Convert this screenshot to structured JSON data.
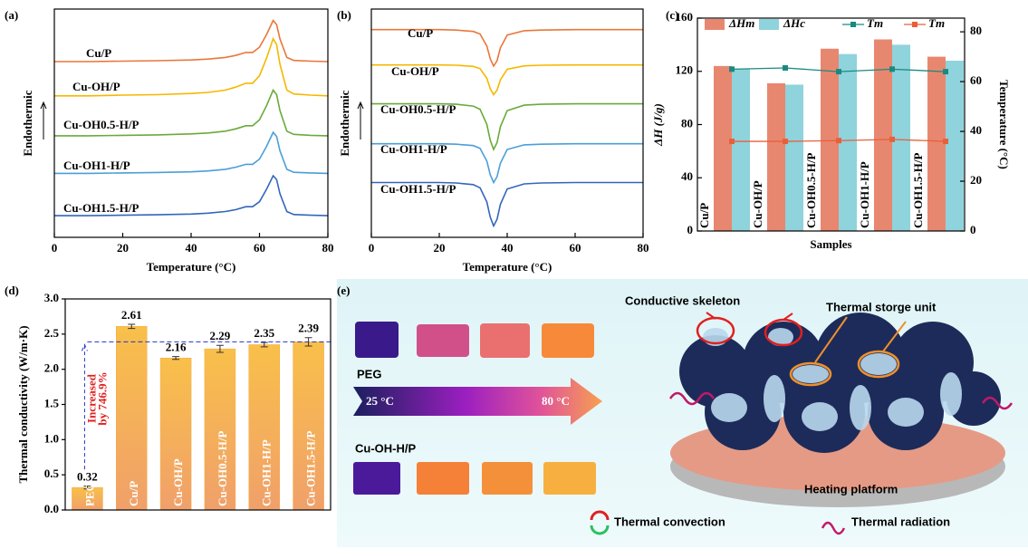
{
  "chart_data": [
    {
      "panel": "(a)",
      "type": "line",
      "x": [
        0,
        10,
        20,
        30,
        40,
        45,
        50,
        53,
        56,
        58,
        60,
        62,
        64,
        65,
        66,
        68,
        70,
        75,
        80
      ],
      "xlim": [
        0,
        80
      ],
      "xticks": [
        0,
        20,
        40,
        60,
        80
      ],
      "ylim": [
        0,
        10
      ],
      "xlabel": "Temperature (°C)",
      "ylabel": "Endothermic",
      "series": [
        {
          "name": "Cu/P",
          "color": "#e8773a",
          "values": [
            7.7,
            7.7,
            7.72,
            7.74,
            7.77,
            7.81,
            7.88,
            7.97,
            8.1,
            8.1,
            8.33,
            8.87,
            9.5,
            9.32,
            8.69,
            7.88,
            7.75,
            7.72,
            7.7
          ]
        },
        {
          "name": "Cu-OH/P",
          "color": "#f5b800",
          "values": [
            6.2,
            6.2,
            6.23,
            6.25,
            6.3,
            6.35,
            6.45,
            6.58,
            6.75,
            6.75,
            7.08,
            7.83,
            8.7,
            8.45,
            7.58,
            6.45,
            6.28,
            6.23,
            6.2
          ]
        },
        {
          "name": "Cu-OH0.5-H/P",
          "color": "#6aaa3a",
          "values": [
            4.45,
            4.45,
            4.47,
            4.49,
            4.53,
            4.57,
            4.65,
            4.75,
            4.89,
            4.89,
            5.15,
            5.75,
            6.45,
            6.25,
            5.55,
            4.65,
            4.51,
            4.47,
            4.45
          ]
        },
        {
          "name": "Cu-OH1-H/P",
          "color": "#4a9fd8",
          "values": [
            2.8,
            2.8,
            2.82,
            2.84,
            2.87,
            2.91,
            2.98,
            3.07,
            3.2,
            3.2,
            3.43,
            3.97,
            4.6,
            4.42,
            3.79,
            2.98,
            2.85,
            2.82,
            2.8
          ]
        },
        {
          "name": "Cu-OH1.5-H/P",
          "color": "#3366bb",
          "values": [
            0.95,
            0.95,
            0.97,
            0.99,
            1.02,
            1.06,
            1.13,
            1.21,
            1.34,
            1.34,
            1.56,
            2.09,
            2.7,
            2.53,
            1.91,
            1.13,
            1.0,
            0.97,
            0.95
          ]
        }
      ]
    },
    {
      "panel": "(b)",
      "type": "line",
      "x": [
        0,
        10,
        20,
        25,
        30,
        32,
        34,
        35,
        36,
        37,
        38,
        40,
        45,
        50,
        60,
        70,
        80
      ],
      "xlim": [
        0,
        80
      ],
      "xticks": [
        0,
        20,
        40,
        60,
        80
      ],
      "ylim": [
        0,
        10
      ],
      "xlabel": "Temperature (°C)",
      "ylabel": "Endothermic",
      "series": [
        {
          "name": "Cu/P",
          "color": "#e8773a",
          "values": [
            9.1,
            9.1,
            9.1,
            9.08,
            9.02,
            8.91,
            8.38,
            7.82,
            7.5,
            7.74,
            8.3,
            8.86,
            9.05,
            9.08,
            9.1,
            9.1,
            9.1
          ]
        },
        {
          "name": "Cu-OH/P",
          "color": "#f5b800",
          "values": [
            7.55,
            7.55,
            7.55,
            7.54,
            7.49,
            7.39,
            6.97,
            6.51,
            6.25,
            6.45,
            6.9,
            7.36,
            7.51,
            7.54,
            7.55,
            7.55,
            7.55
          ]
        },
        {
          "name": "Cu-OH0.5-H/P",
          "color": "#6aaa3a",
          "values": [
            5.85,
            5.85,
            5.85,
            5.83,
            5.75,
            5.61,
            4.95,
            4.25,
            3.85,
            4.15,
            4.85,
            5.55,
            5.79,
            5.83,
            5.85,
            5.85,
            5.85
          ]
        },
        {
          "name": "Cu-OH1-H/P",
          "color": "#4a9fd8",
          "values": [
            4.1,
            4.1,
            4.1,
            4.08,
            4.02,
            3.9,
            3.34,
            2.74,
            2.4,
            2.66,
            3.25,
            3.85,
            4.05,
            4.08,
            4.1,
            4.1,
            4.1
          ]
        },
        {
          "name": "Cu-OH1.5-H/P",
          "color": "#3366bb",
          "values": [
            2.4,
            2.4,
            2.4,
            2.38,
            2.31,
            2.17,
            1.55,
            0.88,
            0.5,
            0.79,
            1.45,
            2.12,
            2.34,
            2.38,
            2.4,
            2.4,
            2.4
          ]
        }
      ]
    },
    {
      "panel": "(c)",
      "type": "bar-line",
      "categories": [
        "Cu/P",
        "Cu-OH/P",
        "Cu-OH0.5-H/P",
        "Cu-OH1-H/P",
        "Cu-OH1.5-H/P"
      ],
      "ylim": [
        0,
        160
      ],
      "yticks": [
        0,
        40,
        80,
        120,
        160
      ],
      "y2lim": [
        0,
        85.5
      ],
      "y2ticks": [
        0,
        20,
        40,
        60,
        80
      ],
      "xlabel": "Samples",
      "ylabel": "ΔH (J/g)",
      "y2label": "Temperature (°C)",
      "legend": "top",
      "series": [
        {
          "name": "ΔHm",
          "color": "#e8876f",
          "mark": "bar",
          "values": [
            124,
            111,
            137,
            144,
            131
          ]
        },
        {
          "name": "ΔHc",
          "color": "#8fd3dc",
          "mark": "bar",
          "values": [
            122,
            110,
            133,
            140,
            128
          ]
        },
        {
          "name": "Tm",
          "color": "#1a8a80",
          "mark": "line",
          "axis": "y2",
          "values": [
            65,
            65.5,
            64,
            65,
            64
          ]
        },
        {
          "name": "Tm",
          "color": "#e8603a",
          "mark": "line",
          "axis": "y2",
          "values": [
            36,
            36,
            36.3,
            36.8,
            36
          ]
        }
      ]
    },
    {
      "panel": "(d)",
      "type": "bar",
      "categories": [
        "PEG",
        "Cu/P",
        "Cu-OH/P",
        "Cu-OH0.5-H/P",
        "Cu-OH1-H/P",
        "Cu-OH1.5-H/P"
      ],
      "values": [
        0.32,
        2.61,
        2.16,
        2.29,
        2.35,
        2.39
      ],
      "errors": [
        0.02,
        0.03,
        0.02,
        0.05,
        0.03,
        0.06
      ],
      "color": "#f7a943",
      "ylim": [
        0,
        3
      ],
      "yticks": [
        {
          "value": 0,
          "label": "0.0"
        },
        0.5,
        {
          "value": 1,
          "label": "1.0"
        },
        1.5,
        {
          "value": 2,
          "label": "2.0"
        },
        2.5,
        {
          "value": 3,
          "label": "3.0"
        }
      ],
      "ylabel": "Thermal conductivity (W/m·K)",
      "annotation": [
        "Increased",
        "by 746.9%"
      ]
    }
  ],
  "panel_e": {
    "label": "(e)",
    "peg": "PEG",
    "cu": "Cu-OH-H/P",
    "t_low": "25 °C",
    "t_high": "80 °C",
    "skeleton": "Conductive skeleton",
    "storage": "Thermal storge unit",
    "platform": "Heating platform",
    "convection": "Thermal convection",
    "radiation": "Thermal radiation"
  }
}
